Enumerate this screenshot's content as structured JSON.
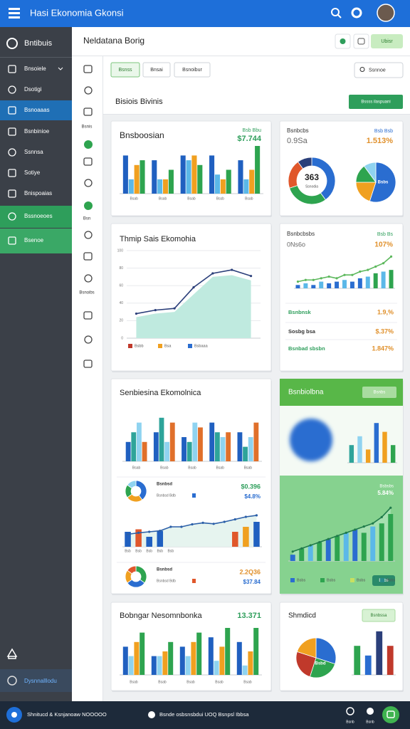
{
  "topbar": {
    "title": "Hasi Ekonomia Gkonsi"
  },
  "sidebar": {
    "brand": "Bntibuis",
    "items": [
      "Bnsoiele",
      "Dsotigi",
      "Bsnoaaas",
      "Bsnbinioe",
      "Ssnnsa",
      "Sotiye",
      "Bnispoaias",
      "Bssnoeoes",
      "Bsenoe"
    ],
    "footer": "Dysnnalllodu"
  },
  "rail": {
    "labels": [
      "Bsnis",
      "Bsn",
      "Bsnoibs"
    ]
  },
  "header": {
    "title": "Neldatana Borig",
    "button": "Ubisr"
  },
  "tabs": [
    "Bsnss",
    "Bnsai",
    "Bsnoibur"
  ],
  "search": "Ssnnoe",
  "panel": {
    "title": "Bisiois Bivinis",
    "button": "Bssss ilaspuani"
  },
  "cards": [
    {
      "title": "Bnsboosian",
      "caption": "Bsb Bbu",
      "value": "$7.744",
      "charts": [
        {
          "type": "bar",
          "categories": [
            "Bsab",
            "Bsab",
            "Bsab",
            "Bssb",
            "Bsab"
          ],
          "ylim": [
            0,
            10
          ],
          "series": [
            {
              "type": "bar",
              "color": "#2060c0",
              "values": [
                8,
                7,
                8,
                8,
                7
              ]
            },
            {
              "type": "bar",
              "color": "#5bb8e8",
              "values": [
                3,
                3,
                7,
                4,
                3
              ]
            },
            {
              "type": "bar",
              "color": "#f0a020",
              "values": [
                6,
                3,
                8,
                3,
                5
              ]
            },
            {
              "type": "bar",
              "color": "#2ea44f",
              "values": [
                7,
                5,
                6,
                5,
                10
              ]
            }
          ]
        }
      ]
    },
    {
      "title": "Bsnbcbs",
      "subtitle": "0.9Sa",
      "caption": "Bsb Bsb",
      "value": "1.513%",
      "charts": [
        {
          "type": "donut",
          "center": "363",
          "center_sub": "Ssnodia",
          "values": [
            40,
            30,
            20,
            10
          ],
          "colors": [
            "#2a6dd0",
            "#2ea44f",
            "#e0572b",
            "#2b3f7a"
          ]
        },
        {
          "type": "pie",
          "label": "Bsbs",
          "values": [
            55,
            20,
            15,
            10
          ],
          "colors": [
            "#2a6dd0",
            "#f0a020",
            "#2ea44f",
            "#8fd3f0"
          ]
        }
      ]
    },
    {
      "title": "Thmip Sais Ekomohia",
      "charts": [
        {
          "type": "line",
          "ylim": [
            0,
            100
          ],
          "yticks": [
            0,
            20,
            40,
            60,
            80,
            100
          ],
          "series": [
            {
              "type": "area",
              "color": "#bfeadf",
              "values": [
                24,
                28,
                30,
                50,
                70,
                72,
                66
              ]
            },
            {
              "type": "line",
              "color": "#2b3f7a",
              "values": [
                28,
                32,
                34,
                58,
                74,
                78,
                71
              ]
            }
          ],
          "legend": [
            {
              "label": "Bsbb",
              "color": "#c0392b"
            },
            {
              "label": "Bsa",
              "color": "#f0a020"
            },
            {
              "label": "Bsbaaa",
              "color": "#2a6dd0"
            }
          ]
        }
      ]
    },
    {
      "title": "Bsnbcbsbs",
      "subtitle": "0Ns6o",
      "caption": "Bsb Bs",
      "value": "107%",
      "charts": [
        {
          "type": "bar",
          "ylim": [
            0,
            10
          ],
          "series": [
            {
              "type": "bar",
              "color": "#2a6dd0",
              "colors": [
                "#2a6dd0",
                "#5bb8e8",
                "#2a6dd0",
                "#5bb8e8",
                "#2a6dd0",
                "#2a6dd0",
                "#5bb8e8",
                "#2a6dd0",
                "#2a6dd0",
                "#5bb8e8",
                "#2ea44f",
                "#5bb8e8",
                "#2ea44f"
              ],
              "values": [
                1,
                1.5,
                1,
                2,
                1.5,
                2,
                2.5,
                2,
                3,
                3.5,
                4.5,
                5,
                5.5
              ]
            },
            {
              "type": "line",
              "color": "#5cb85c",
              "values": [
                2,
                2.5,
                2.5,
                3,
                3.5,
                3,
                4,
                4,
                5,
                5.5,
                6.5,
                7.5,
                9.5
              ]
            }
          ]
        }
      ],
      "stats": [
        {
          "label": "Bsnbnsk",
          "value": "1.9,%"
        },
        {
          "label": "Sosbg bsa",
          "value": "$.37%"
        },
        {
          "label": "Bsnbad sbsbn",
          "value": "1.847%"
        }
      ]
    },
    {
      "title": "Senbiesina Ekomolnica",
      "rows": [
        {
          "label": "Bsnbsd",
          "sub": "Bsnbsd Bdb",
          "value": "$0.396",
          "value2": "$4.8%"
        },
        {
          "label": "Bsnbsd",
          "sub": "Bsnbsd Bdb",
          "value": "2.2Q36",
          "value2": "$37.84"
        }
      ],
      "charts": [
        {
          "type": "bar",
          "categories": [
            "Bsab",
            "Bsab",
            "Bsab",
            "Bsab",
            "Bsab"
          ],
          "ylim": [
            0,
            10
          ],
          "series": [
            {
              "type": "bar",
              "color": "#2060c0",
              "values": [
                4,
                6,
                5,
                8,
                6
              ]
            },
            {
              "type": "bar",
              "color": "#2ea49a",
              "values": [
                6,
                9,
                4,
                6,
                3
              ]
            },
            {
              "type": "bar",
              "color": "#8fd3f0",
              "values": [
                8,
                4,
                8,
                5,
                5
              ]
            },
            {
              "type": "bar",
              "color": "#e0702b",
              "values": [
                4,
                8,
                7,
                6,
                8
              ]
            }
          ]
        },
        {
          "type": "donut",
          "values": [
            40,
            25,
            20,
            15
          ],
          "colors": [
            "#2a6dd0",
            "#f0a020",
            "#2ea44f",
            "#8fd3f0"
          ]
        },
        {
          "type": "bar",
          "categories": [
            "Bsb",
            "Bsb",
            "Bsb",
            "Bsb",
            "Bsb"
          ],
          "ylim": [
            0,
            8
          ],
          "series": [
            {
              "type": "area",
              "color": "#e6f4ef",
              "values": [
                2.5,
                2.8,
                3,
                3.2,
                4,
                4,
                4.5,
                4.8,
                4.6,
                5,
                5.5,
                6,
                6.3
              ]
            },
            {
              "type": "bar",
              "color": "#2060c0",
              "colors": [
                "#2060c0",
                "#e0572b",
                "#2060c0",
                "#2060c0",
                null,
                null,
                null,
                null,
                null,
                null,
                "#e0572b",
                "#f0a020",
                "#2060c0"
              ],
              "values": [
                3,
                3.5,
                2,
                3.2,
                null,
                null,
                null,
                null,
                null,
                null,
                3,
                4,
                5
              ]
            },
            {
              "type": "line",
              "color": "#2b5fa8",
              "values": [
                2.5,
                2.8,
                3,
                3.2,
                4,
                4,
                4.5,
                4.8,
                4.6,
                5,
                5.5,
                6,
                6.3
              ]
            }
          ]
        },
        {
          "type": "donut",
          "values": [
            35,
            30,
            20,
            15
          ],
          "colors": [
            "#2ea44f",
            "#2a6dd0",
            "#f0a020",
            "#e0572b"
          ]
        }
      ]
    },
    {
      "title": "Bsnbiolbna",
      "button": "Bsnbs",
      "caption": "Bsbsbs",
      "value": "5.84%",
      "action": "Bsbs",
      "charts": [
        {
          "type": "bar",
          "ylim": [
            0,
            10
          ],
          "series": [
            {
              "type": "bar",
              "color": "#2ea49a",
              "colors": [
                "#2ea49a",
                "#8fd3f0",
                "#f0a020",
                "#2a6dd0",
                "#f0a020",
                "#2ea44f"
              ],
              "values": [
                4,
                6,
                3,
                9,
                7,
                4
              ]
            }
          ]
        },
        {
          "type": "bar",
          "ylim": [
            0,
            10
          ],
          "series": [
            {
              "type": "area",
              "color": "#a5e0b0",
              "values": [
                1.5,
                2,
                2.5,
                3,
                3.5,
                4,
                4.5,
                5,
                5.5,
                6,
                7,
                8.5
              ]
            },
            {
              "type": "bar",
              "color": "#2ea44f",
              "colors": [
                "#2a6dd0",
                "#2ea44f",
                "#5bb8e8",
                "#2ea44f",
                "#2a6dd0",
                "#2ea44f",
                "#5bb8e8",
                "#2a6dd0",
                "#2ea44f",
                "#5bb8e8",
                "#2ea44f",
                "#2ea44f"
              ],
              "values": [
                1,
                2,
                2.5,
                3,
                3.5,
                4,
                4.5,
                5,
                4.5,
                5.5,
                6,
                7.5
              ]
            },
            {
              "type": "line",
              "color": "#1f7a4a",
              "values": [
                1.5,
                2,
                2.5,
                3,
                3.5,
                4,
                4.5,
                5,
                5.5,
                6,
                7,
                8.5
              ]
            }
          ],
          "legend": [
            {
              "label": "Bsbs",
              "color": "#2a6dd0"
            },
            {
              "label": "Bsbs",
              "color": "#2ea44f"
            },
            {
              "label": "Bsbs",
              "color": "#c8e060"
            },
            {
              "label": "Bsbs",
              "color": "#2a8a8a"
            }
          ]
        }
      ]
    },
    {
      "title": "Bobngar Nesomnbonka",
      "value": "13.371",
      "charts": [
        {
          "type": "bar",
          "categories": [
            "Bsab",
            "Bsab",
            "Bsab",
            "Bsab",
            "Bsab"
          ],
          "ylim": [
            0,
            10
          ],
          "series": [
            {
              "type": "bar",
              "color": "#2060c0",
              "values": [
                6,
                4,
                6,
                8,
                7
              ]
            },
            {
              "type": "bar",
              "color": "#8fd3f0",
              "values": [
                4,
                4,
                4,
                3,
                2
              ]
            },
            {
              "type": "bar",
              "color": "#f0a020",
              "values": [
                7,
                5,
                7,
                6,
                5
              ]
            },
            {
              "type": "bar",
              "color": "#2ea44f",
              "values": [
                9,
                7,
                9,
                10,
                10
              ]
            }
          ]
        }
      ]
    },
    {
      "title": "Shmdicd",
      "button": "Bsnbssa",
      "charts": [
        {
          "type": "pie",
          "label": "Bsbd",
          "values": [
            30,
            25,
            25,
            20
          ],
          "colors": [
            "#2a6dd0",
            "#2ea44f",
            "#c0392b",
            "#f0a020"
          ]
        },
        {
          "type": "bar",
          "ylim": [
            0,
            10
          ],
          "series": [
            {
              "type": "bar",
              "color": "#2ea44f",
              "colors": [
                "#2ea44f",
                "#2a6dd0",
                "#2b3f7a",
                "#c0392b"
              ],
              "values": [
                6,
                4,
                9,
                6
              ]
            }
          ]
        }
      ]
    }
  ],
  "bottombar": {
    "left": "Shnitucd & Ksnjanoaw NOOOOO",
    "middle": "Bsnde osbsnsbdui UOQ Bsnpsl Ibbsa",
    "icons": [
      "Bsnb",
      "Bsnb"
    ]
  }
}
